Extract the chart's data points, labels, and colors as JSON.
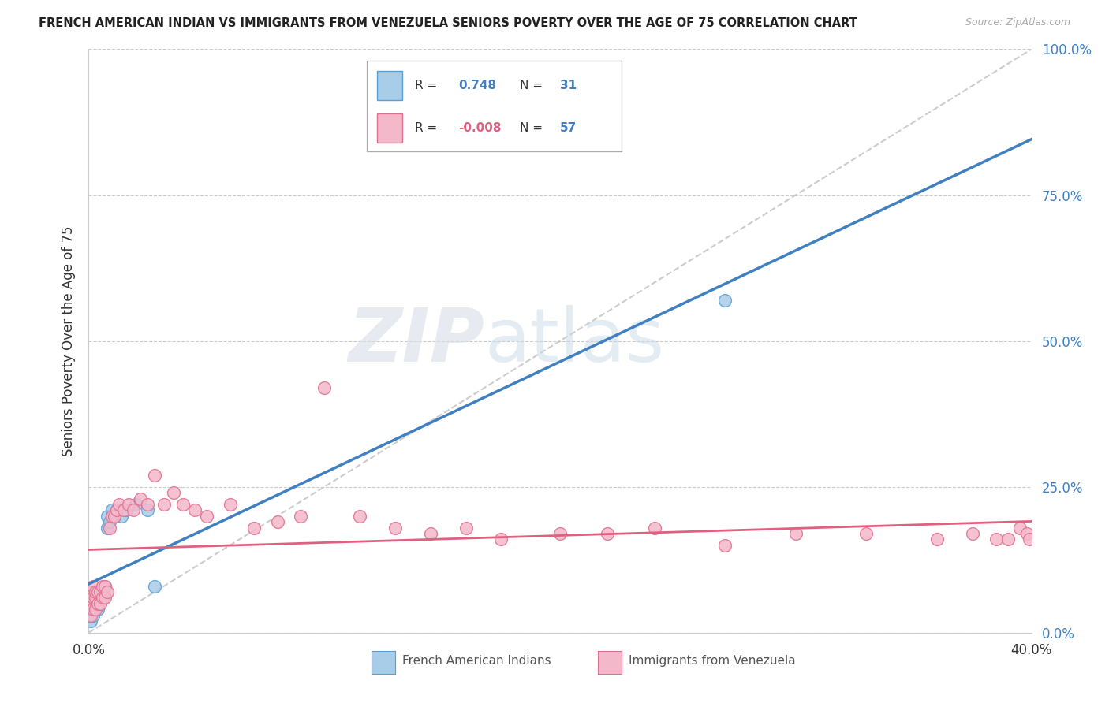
{
  "title": "FRENCH AMERICAN INDIAN VS IMMIGRANTS FROM VENEZUELA SENIORS POVERTY OVER THE AGE OF 75 CORRELATION CHART",
  "source": "Source: ZipAtlas.com",
  "ylabel": "Seniors Poverty Over the Age of 75",
  "legend_label1": "French American Indians",
  "legend_label2": "Immigrants from Venezuela",
  "R1": 0.748,
  "N1": 31,
  "R2": -0.008,
  "N2": 57,
  "color_blue": "#a8cde8",
  "color_pink": "#f4b8cb",
  "color_blue_edge": "#5a9fd4",
  "color_pink_edge": "#e07090",
  "color_blue_line": "#4080c0",
  "color_pink_line": "#e06080",
  "color_diag": "#c0c0c0",
  "watermark_zip": "ZIP",
  "watermark_atlas": "atlas",
  "xmin": 0.0,
  "xmax": 0.4,
  "ymin": 0.0,
  "ymax": 1.0,
  "blue_x": [
    0.001,
    0.001,
    0.001,
    0.001,
    0.002,
    0.002,
    0.002,
    0.002,
    0.002,
    0.003,
    0.003,
    0.003,
    0.004,
    0.004,
    0.004,
    0.005,
    0.005,
    0.006,
    0.006,
    0.007,
    0.008,
    0.008,
    0.009,
    0.01,
    0.012,
    0.014,
    0.016,
    0.02,
    0.025,
    0.028,
    0.27
  ],
  "blue_y": [
    0.02,
    0.03,
    0.04,
    0.05,
    0.03,
    0.04,
    0.05,
    0.06,
    0.07,
    0.04,
    0.05,
    0.06,
    0.04,
    0.06,
    0.07,
    0.05,
    0.06,
    0.06,
    0.07,
    0.08,
    0.18,
    0.2,
    0.19,
    0.21,
    0.21,
    0.2,
    0.21,
    0.22,
    0.21,
    0.08,
    0.57
  ],
  "pink_x": [
    0.001,
    0.001,
    0.001,
    0.002,
    0.002,
    0.002,
    0.003,
    0.003,
    0.003,
    0.004,
    0.004,
    0.005,
    0.005,
    0.006,
    0.006,
    0.007,
    0.007,
    0.008,
    0.009,
    0.01,
    0.011,
    0.012,
    0.013,
    0.015,
    0.017,
    0.019,
    0.022,
    0.025,
    0.028,
    0.032,
    0.036,
    0.04,
    0.045,
    0.05,
    0.06,
    0.07,
    0.08,
    0.09,
    0.1,
    0.115,
    0.13,
    0.145,
    0.16,
    0.175,
    0.2,
    0.22,
    0.24,
    0.27,
    0.3,
    0.33,
    0.36,
    0.375,
    0.385,
    0.39,
    0.395,
    0.398,
    0.399
  ],
  "pink_y": [
    0.03,
    0.05,
    0.07,
    0.04,
    0.06,
    0.08,
    0.04,
    0.06,
    0.07,
    0.05,
    0.07,
    0.05,
    0.07,
    0.06,
    0.08,
    0.06,
    0.08,
    0.07,
    0.18,
    0.2,
    0.2,
    0.21,
    0.22,
    0.21,
    0.22,
    0.21,
    0.23,
    0.22,
    0.27,
    0.22,
    0.24,
    0.22,
    0.21,
    0.2,
    0.22,
    0.18,
    0.19,
    0.2,
    0.42,
    0.2,
    0.18,
    0.17,
    0.18,
    0.16,
    0.17,
    0.17,
    0.18,
    0.15,
    0.17,
    0.17,
    0.16,
    0.17,
    0.16,
    0.16,
    0.18,
    0.17,
    0.16
  ]
}
